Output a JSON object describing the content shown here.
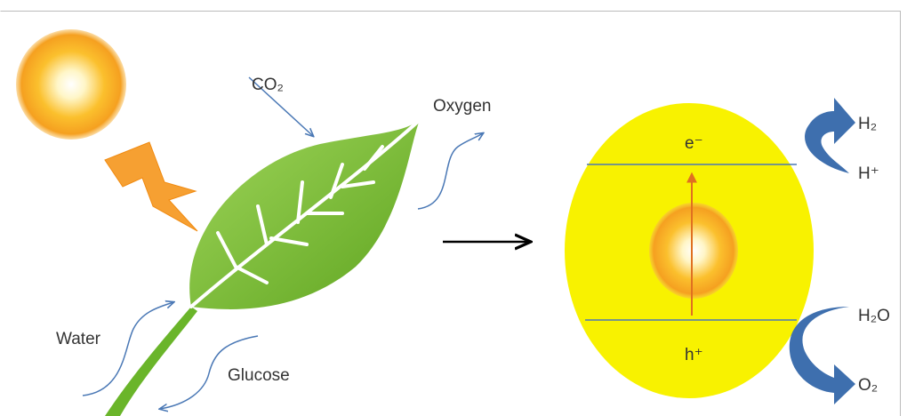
{
  "leaf_side": {
    "co2": "CO₂",
    "oxygen": "Oxygen",
    "water": "Water",
    "glucose": "Glucose"
  },
  "photocatalyst": {
    "electron": "e⁻",
    "hole": "h⁺"
  },
  "reactions": {
    "h2": "H₂",
    "h_plus": "H⁺",
    "h2o": "H₂O",
    "o2": "O₂"
  }
}
